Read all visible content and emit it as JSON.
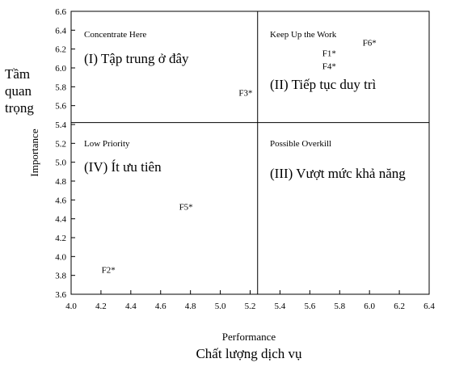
{
  "chart_data": {
    "type": "scatter",
    "xlabel": "Performance",
    "xlabel_vi": "Chất lượng dịch vụ",
    "ylabel": "Importance",
    "ylabel_vi": [
      "Tầm",
      "quan",
      "trọng"
    ],
    "xlim": [
      4.0,
      6.4
    ],
    "ylim": [
      3.6,
      6.6
    ],
    "x_ticks": [
      "4.0",
      "4.2",
      "4.4",
      "4.6",
      "4.8",
      "5.0",
      "5.2",
      "5.4",
      "5.6",
      "5.8",
      "6.0",
      "6.2",
      "6.4"
    ],
    "y_ticks": [
      "3.6",
      "3.8",
      "4.0",
      "4.2",
      "4.4",
      "4.6",
      "4.8",
      "5.0",
      "5.2",
      "5.4",
      "5.6",
      "5.8",
      "6.0",
      "6.2",
      "6.4",
      "6.6"
    ],
    "x_divider": 5.25,
    "y_divider": 5.42,
    "quadrants": [
      {
        "id": "I",
        "en": "Concentrate Here",
        "vi": "(I) Tập trung ở đây",
        "pos": "top-left"
      },
      {
        "id": "II",
        "en": "Keep Up the Work",
        "vi": "(II) Tiếp tục duy trì",
        "pos": "top-right"
      },
      {
        "id": "IV",
        "en": "Low Priority",
        "vi": "(IV) Ít ưu tiên",
        "pos": "bottom-left"
      },
      {
        "id": "III",
        "en": "Possible Overkill",
        "vi": "(III) Vượt mức khả năng",
        "pos": "bottom-right"
      }
    ],
    "points": [
      {
        "label": "F1*",
        "x": 5.73,
        "y": 6.16
      },
      {
        "label": "F2*",
        "x": 4.25,
        "y": 3.86
      },
      {
        "label": "F3*",
        "x": 5.17,
        "y": 5.74
      },
      {
        "label": "F4*",
        "x": 5.73,
        "y": 6.02
      },
      {
        "label": "F5*",
        "x": 4.77,
        "y": 4.53
      },
      {
        "label": "F6*",
        "x": 6.0,
        "y": 6.27
      }
    ]
  }
}
